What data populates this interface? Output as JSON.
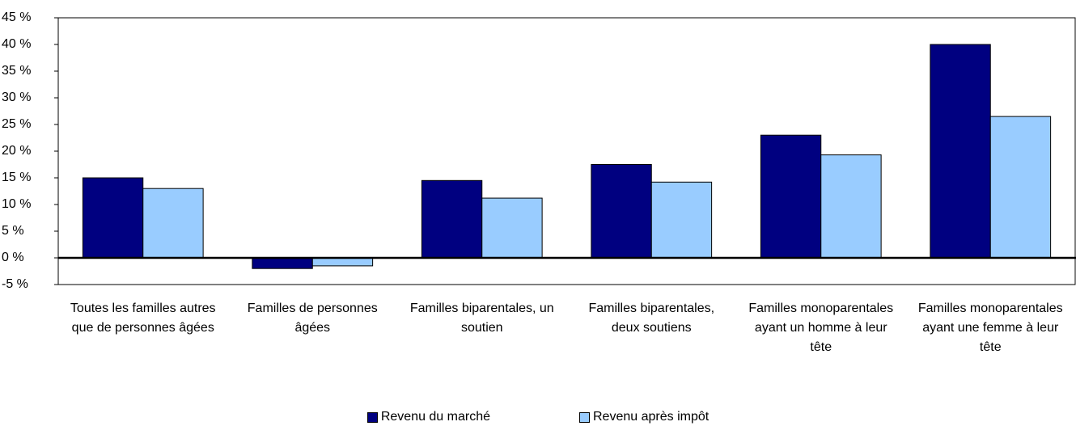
{
  "chart_data": {
    "type": "bar",
    "categories": [
      "Toutes les familles autres que de personnes âgées",
      "Familles de personnes âgées",
      "Familles biparentales, un soutien",
      "Familles biparentales, deux soutiens",
      "Familles monoparentales ayant un homme à leur tête",
      "Familles monoparentales ayant une femme à leur tête"
    ],
    "series": [
      {
        "name": "Revenu du marché",
        "color": "#000080",
        "values": [
          15,
          -2,
          14.5,
          17.5,
          23,
          40
        ]
      },
      {
        "name": "Revenu après impôt",
        "color": "#99ccff",
        "values": [
          13,
          -1.5,
          11.2,
          14.2,
          19.3,
          26.5
        ]
      }
    ],
    "ylim": [
      -5,
      45
    ],
    "yticks": [
      {
        "value": -5,
        "label": "-5 %"
      },
      {
        "value": 0,
        "label": "0 %"
      },
      {
        "value": 5,
        "label": "5 %"
      },
      {
        "value": 10,
        "label": "10 %"
      },
      {
        "value": 15,
        "label": "15 %"
      },
      {
        "value": 20,
        "label": "20 %"
      },
      {
        "value": 25,
        "label": "25 %"
      },
      {
        "value": 30,
        "label": "30 %"
      },
      {
        "value": 35,
        "label": "35 %"
      },
      {
        "value": 40,
        "label": "40 %"
      },
      {
        "value": 45,
        "label": "45 %"
      }
    ],
    "legend": "bottom"
  }
}
